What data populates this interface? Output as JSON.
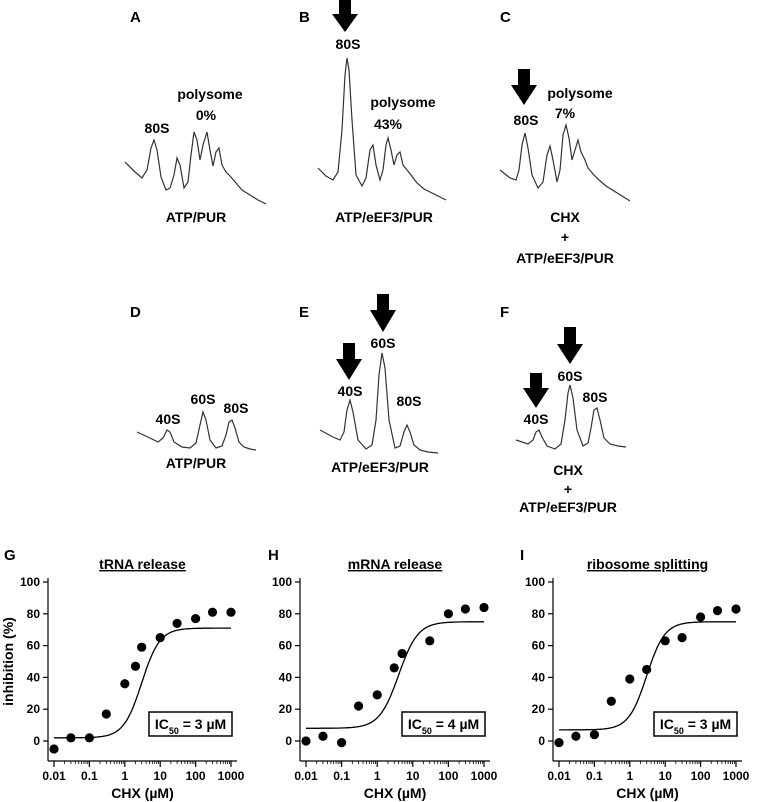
{
  "profiles": [
    {
      "id": "A",
      "condition": [
        "ATP/PUR"
      ],
      "labels": [
        {
          "text": "80S"
        },
        {
          "text": "polysome"
        },
        {
          "text": "0%"
        }
      ],
      "arrows": 0
    },
    {
      "id": "B",
      "condition": [
        "ATP/eEF3/PUR"
      ],
      "labels": [
        {
          "text": "80S"
        },
        {
          "text": "polysome"
        },
        {
          "text": "43%"
        }
      ],
      "arrows": 1
    },
    {
      "id": "C",
      "condition": [
        "CHX",
        "+",
        "ATP/eEF3/PUR"
      ],
      "labels": [
        {
          "text": "80S"
        },
        {
          "text": "polysome"
        },
        {
          "text": "7%"
        }
      ],
      "arrows": 1
    },
    {
      "id": "D",
      "condition": [
        "ATP/PUR"
      ],
      "labels": [
        {
          "text": "40S"
        },
        {
          "text": "60S"
        },
        {
          "text": "80S"
        }
      ],
      "arrows": 0
    },
    {
      "id": "E",
      "condition": [
        "ATP/eEF3/PUR"
      ],
      "labels": [
        {
          "text": "40S"
        },
        {
          "text": "60S"
        },
        {
          "text": "80S"
        }
      ],
      "arrows": 2
    },
    {
      "id": "F",
      "condition": [
        "CHX",
        "+",
        "ATP/eEF3/PUR"
      ],
      "labels": [
        {
          "text": "40S"
        },
        {
          "text": "60S"
        },
        {
          "text": "80S"
        }
      ],
      "arrows": 2
    }
  ],
  "chart_data": [
    {
      "panel": "G",
      "type": "scatter",
      "title": "tRNA release",
      "xlabel": "CHX (µM)",
      "ylabel": "inhibition (%)",
      "xscale": "log",
      "xlim": [
        0.01,
        1000
      ],
      "ylim": [
        0,
        100
      ],
      "xticks": [
        "0.01",
        "0.1",
        "1",
        "10",
        "100",
        "1000"
      ],
      "yticks": [
        "0",
        "20",
        "40",
        "60",
        "80",
        "100"
      ],
      "x": [
        0.01,
        0.03,
        0.1,
        0.3,
        1,
        2,
        3,
        10,
        30,
        100,
        300,
        1000
      ],
      "y": [
        -5,
        2,
        2,
        17,
        36,
        47,
        59,
        65,
        74,
        77,
        81,
        81
      ],
      "fit": {
        "bottom": 2,
        "top": 71,
        "ic50": 3,
        "hill": 1.7
      },
      "annotation": {
        "prefix": "IC",
        "sub": "50",
        "suffix": " = 3 µM"
      }
    },
    {
      "panel": "H",
      "type": "scatter",
      "title": "mRNA release",
      "xlabel": "CHX (µM)",
      "ylabel": "",
      "xscale": "log",
      "xlim": [
        0.01,
        1000
      ],
      "ylim": [
        0,
        100
      ],
      "xticks": [
        "0.01",
        "0.1",
        "1",
        "10",
        "100",
        "1000"
      ],
      "yticks": [
        "0",
        "20",
        "40",
        "60",
        "80",
        "100"
      ],
      "x": [
        0.01,
        0.03,
        0.1,
        0.3,
        1,
        3,
        5,
        30,
        100,
        300,
        1000
      ],
      "y": [
        0,
        3,
        -1,
        22,
        29,
        46,
        55,
        63,
        80,
        83,
        84
      ],
      "fit": {
        "bottom": 8,
        "top": 75,
        "ic50": 4,
        "hill": 1.6
      },
      "annotation": {
        "prefix": "IC",
        "sub": "50",
        "suffix": " = 4 µM"
      }
    },
    {
      "panel": "I",
      "type": "scatter",
      "title": "ribosome splitting",
      "xlabel": "CHX (µM)",
      "ylabel": "",
      "xscale": "log",
      "xlim": [
        0.01,
        1000
      ],
      "ylim": [
        0,
        100
      ],
      "xticks": [
        "0.01",
        "0.1",
        "1",
        "10",
        "100",
        "1000"
      ],
      "yticks": [
        "0",
        "20",
        "40",
        "60",
        "80",
        "100"
      ],
      "x": [
        0.01,
        0.03,
        0.1,
        0.3,
        1,
        3,
        10,
        30,
        100,
        300,
        1000
      ],
      "y": [
        -1,
        3,
        4,
        25,
        39,
        45,
        63,
        65,
        78,
        82,
        83
      ],
      "fit": {
        "bottom": 7,
        "top": 75,
        "ic50": 3,
        "hill": 1.7
      },
      "annotation": {
        "prefix": "IC",
        "sub": "50",
        "suffix": " = 3 µM"
      }
    }
  ]
}
